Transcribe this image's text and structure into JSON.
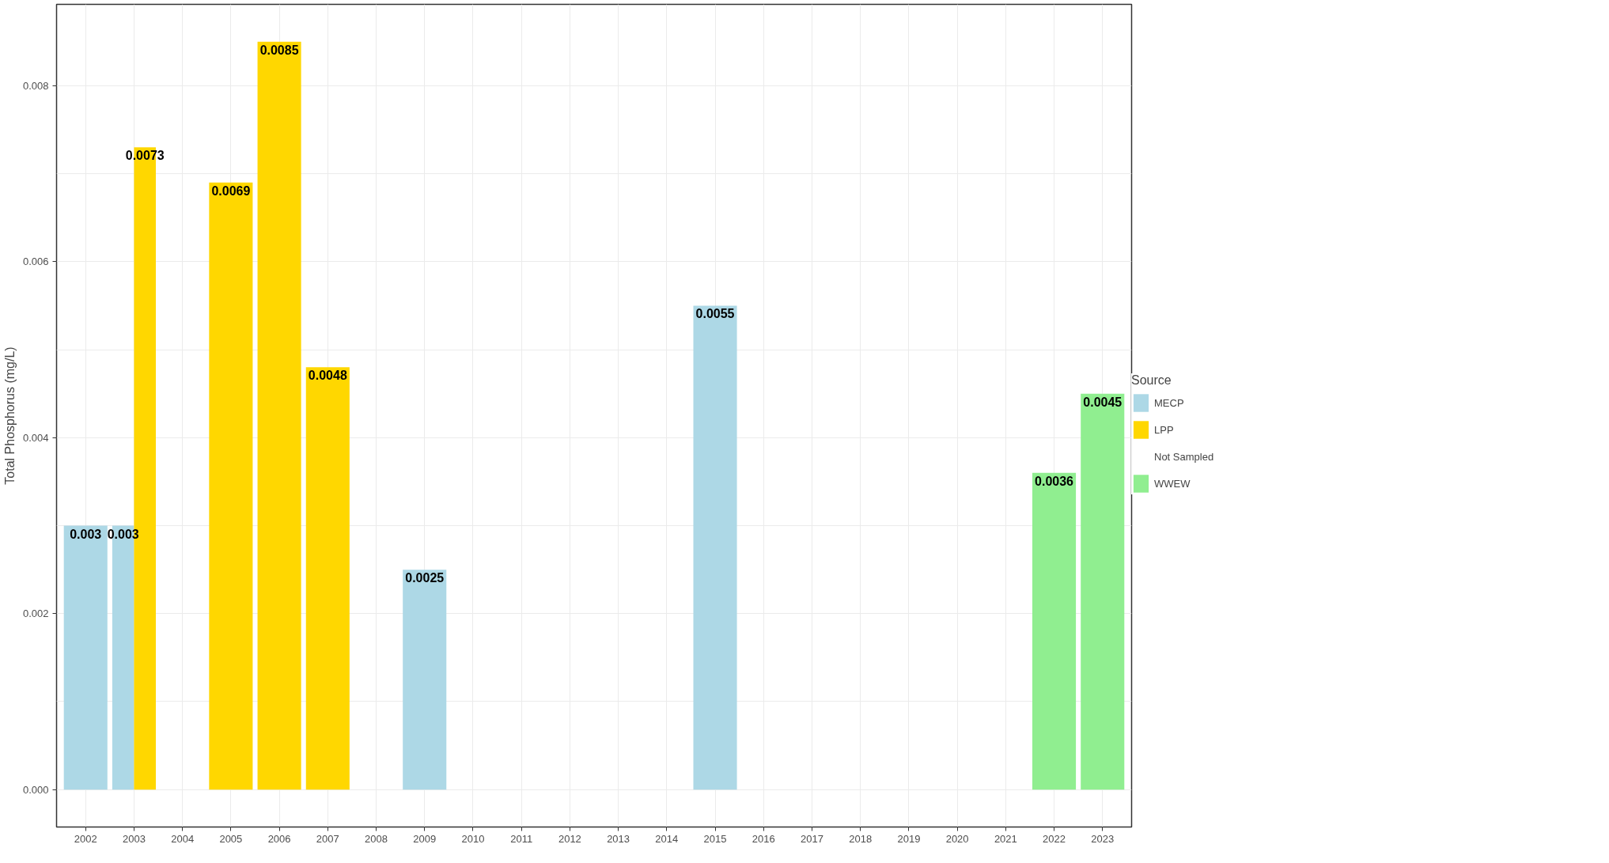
{
  "chart_data": {
    "type": "bar",
    "ylabel": "Total Phosphorus (mg/L)",
    "legend_title": "Source",
    "legend": "right",
    "grid": true,
    "data_labels": true,
    "categories": [
      "2002",
      "2003",
      "2004",
      "2005",
      "2006",
      "2007",
      "2008",
      "2009",
      "2010",
      "2011",
      "2012",
      "2013",
      "2014",
      "2015",
      "2016",
      "2017",
      "2018",
      "2019",
      "2020",
      "2021",
      "2022",
      "2023"
    ],
    "ylim": [
      -0.000425,
      0.008925
    ],
    "yticks": [
      {
        "value": 0,
        "label": "0.000"
      },
      {
        "value": 0.002,
        "label": "0.002"
      },
      {
        "value": 0.004,
        "label": "0.004"
      },
      {
        "value": 0.006,
        "label": "0.006"
      },
      {
        "value": 0.008,
        "label": "0.008"
      }
    ],
    "series": [
      {
        "name": "MECP",
        "color": "#add8e6",
        "values": [
          0.003,
          0.003,
          null,
          null,
          null,
          null,
          null,
          0.0025,
          null,
          null,
          null,
          null,
          null,
          0.0055,
          null,
          null,
          null,
          null,
          null,
          null,
          null,
          null
        ]
      },
      {
        "name": "LPP",
        "color": "#ffd700",
        "values": [
          null,
          0.0073,
          null,
          0.0069,
          0.0085,
          0.0048,
          null,
          null,
          null,
          null,
          null,
          null,
          null,
          null,
          null,
          null,
          null,
          null,
          null,
          null,
          null,
          null
        ]
      },
      {
        "name": "Not Sampled",
        "values": [
          null,
          null,
          null,
          null,
          null,
          null,
          null,
          null,
          null,
          null,
          null,
          null,
          null,
          null,
          null,
          null,
          null,
          null,
          null,
          null,
          null,
          null
        ]
      },
      {
        "name": "WWEW",
        "color": "#90ee90",
        "values": [
          null,
          null,
          null,
          null,
          null,
          null,
          null,
          null,
          null,
          null,
          null,
          null,
          null,
          null,
          null,
          null,
          null,
          null,
          null,
          null,
          0.0036,
          0.0045
        ]
      }
    ]
  }
}
